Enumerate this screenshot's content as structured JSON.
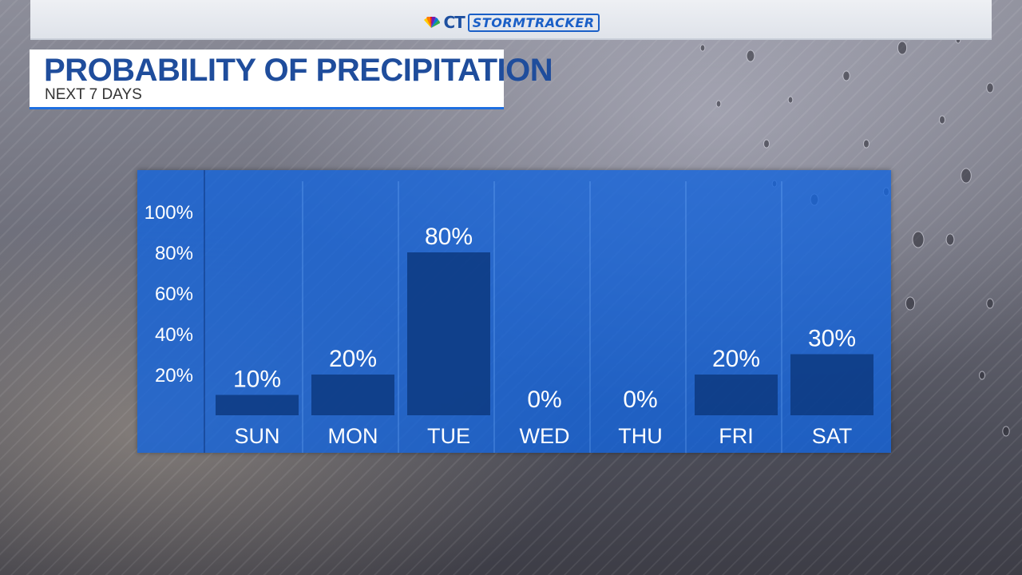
{
  "branding": {
    "network": "CT",
    "product": "STORMTRACKER"
  },
  "header": {
    "title": "PROBABILITY OF PRECIPITATION",
    "subtitle": "NEXT 7 DAYS"
  },
  "colors": {
    "panel": "#1464dc",
    "bar": "#0d3a80",
    "title": "#1f4d9c"
  },
  "chart_data": {
    "type": "bar",
    "title": "PROBABILITY OF PRECIPITATION",
    "subtitle": "NEXT 7 DAYS",
    "categories": [
      "SUN",
      "MON",
      "TUE",
      "WED",
      "THU",
      "FRI",
      "SAT"
    ],
    "values": [
      10,
      20,
      80,
      0,
      0,
      20,
      30
    ],
    "value_labels": [
      "10%",
      "20%",
      "80%",
      "0%",
      "0%",
      "20%",
      "30%"
    ],
    "ylim": [
      0,
      100
    ],
    "yticks": [
      20,
      40,
      60,
      80,
      100
    ],
    "ytick_labels": [
      "20%",
      "40%",
      "60%",
      "80%",
      "100%"
    ],
    "grid": "vertical separators",
    "legend": "none"
  }
}
